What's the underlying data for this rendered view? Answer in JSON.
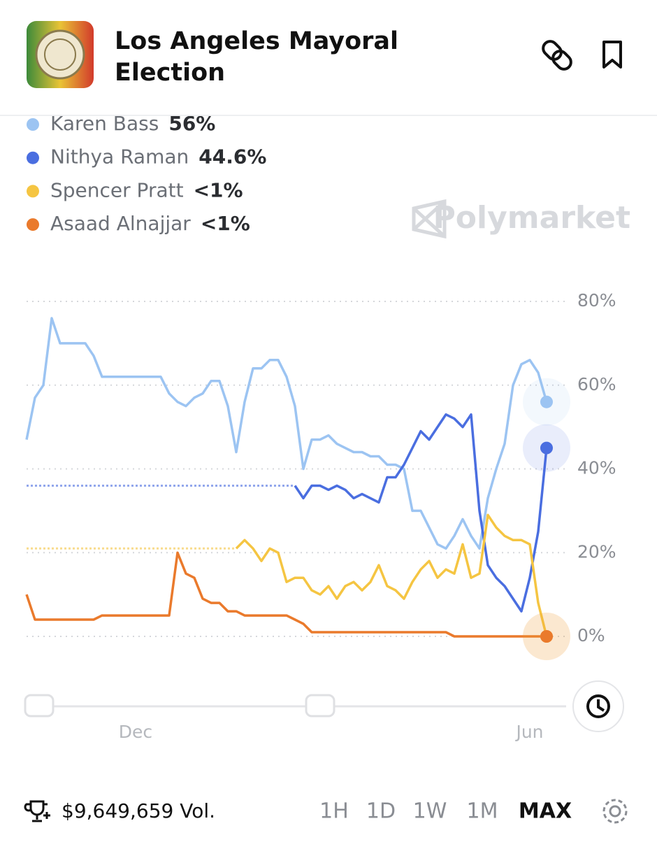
{
  "header": {
    "title_line1": "Los Angeles Mayoral",
    "title_line2": "Election"
  },
  "watermark": "Polymarket",
  "chart_data": {
    "type": "line",
    "categories": [
      null,
      null,
      null,
      null,
      null,
      null,
      null,
      null,
      null,
      null,
      null,
      null,
      null,
      "Dec",
      null,
      null,
      null,
      null,
      null,
      null,
      null,
      null,
      null,
      null,
      null,
      null,
      null,
      null,
      null,
      null,
      null,
      null,
      null,
      null,
      null,
      null,
      null,
      null,
      null,
      null,
      null,
      null,
      null,
      null,
      null,
      null,
      null,
      null,
      null,
      null,
      null,
      null,
      null,
      null,
      null,
      null,
      null,
      null,
      null,
      null,
      "Jun",
      null,
      null
    ],
    "ylim": [
      0,
      80
    ],
    "yticks": [
      {
        "value": 0,
        "label": "0%"
      },
      {
        "value": 20,
        "label": "20%"
      },
      {
        "value": 40,
        "label": "40%"
      },
      {
        "value": 60,
        "label": "60%"
      },
      {
        "value": 80,
        "label": "80%"
      }
    ],
    "grid": true,
    "series": [
      {
        "name": "Karen Bass",
        "current": "56%",
        "color": "#9cc4f2",
        "values": [
          47,
          57,
          60,
          76,
          70,
          70,
          70,
          70,
          67,
          62,
          62,
          62,
          62,
          62,
          62,
          62,
          62,
          58,
          56,
          55,
          57,
          58,
          61,
          61,
          55,
          44,
          56,
          64,
          64,
          66,
          66,
          62,
          55,
          40,
          47,
          47,
          48,
          46,
          45,
          44,
          44,
          43,
          43,
          41,
          41,
          40,
          30,
          30,
          26,
          22,
          21,
          24,
          28,
          24,
          21,
          33,
          40,
          46,
          60,
          65,
          66,
          63,
          56
        ]
      },
      {
        "name": "Nithya Raman",
        "current": "44.6%",
        "color": "#4a6ee0",
        "values": [
          null,
          null,
          null,
          null,
          null,
          null,
          null,
          null,
          null,
          null,
          null,
          null,
          null,
          null,
          null,
          null,
          null,
          null,
          null,
          null,
          null,
          null,
          null,
          null,
          null,
          null,
          null,
          null,
          null,
          null,
          null,
          null,
          36,
          33,
          36,
          36,
          35,
          36,
          35,
          33,
          34,
          33,
          32,
          38,
          38,
          41,
          45,
          49,
          47,
          50,
          53,
          52,
          50,
          53,
          30,
          17,
          14,
          12,
          9,
          6,
          14,
          25,
          45
        ]
      },
      {
        "name": "Spencer Pratt",
        "current": "<1%",
        "color": "#f5c542",
        "values": [
          null,
          null,
          null,
          null,
          null,
          null,
          null,
          null,
          null,
          null,
          null,
          null,
          null,
          null,
          null,
          null,
          null,
          null,
          null,
          null,
          null,
          null,
          null,
          null,
          null,
          21,
          23,
          21,
          18,
          21,
          20,
          13,
          14,
          14,
          11,
          10,
          12,
          9,
          12,
          13,
          11,
          13,
          17,
          12,
          11,
          9,
          13,
          16,
          18,
          14,
          16,
          15,
          22,
          14,
          15,
          29,
          26,
          24,
          23,
          23,
          22,
          8,
          0
        ]
      },
      {
        "name": "Asaad Alnajjar",
        "current": "<1%",
        "color": "#ea7a2c",
        "values": [
          10,
          4,
          4,
          4,
          4,
          4,
          4,
          4,
          4,
          5,
          5,
          5,
          5,
          5,
          5,
          5,
          5,
          5,
          20,
          15,
          14,
          9,
          8,
          8,
          6,
          6,
          5,
          5,
          5,
          5,
          5,
          5,
          4,
          3,
          1,
          1,
          1,
          1,
          1,
          1,
          1,
          1,
          1,
          1,
          1,
          1,
          1,
          1,
          1,
          1,
          1,
          0,
          0,
          0,
          0,
          0,
          0,
          0,
          0,
          0,
          0,
          0,
          0
        ]
      }
    ]
  },
  "footer": {
    "volume": "$9,649,659 Vol.",
    "ranges": [
      "1H",
      "1D",
      "1W",
      "1M",
      "MAX"
    ]
  }
}
